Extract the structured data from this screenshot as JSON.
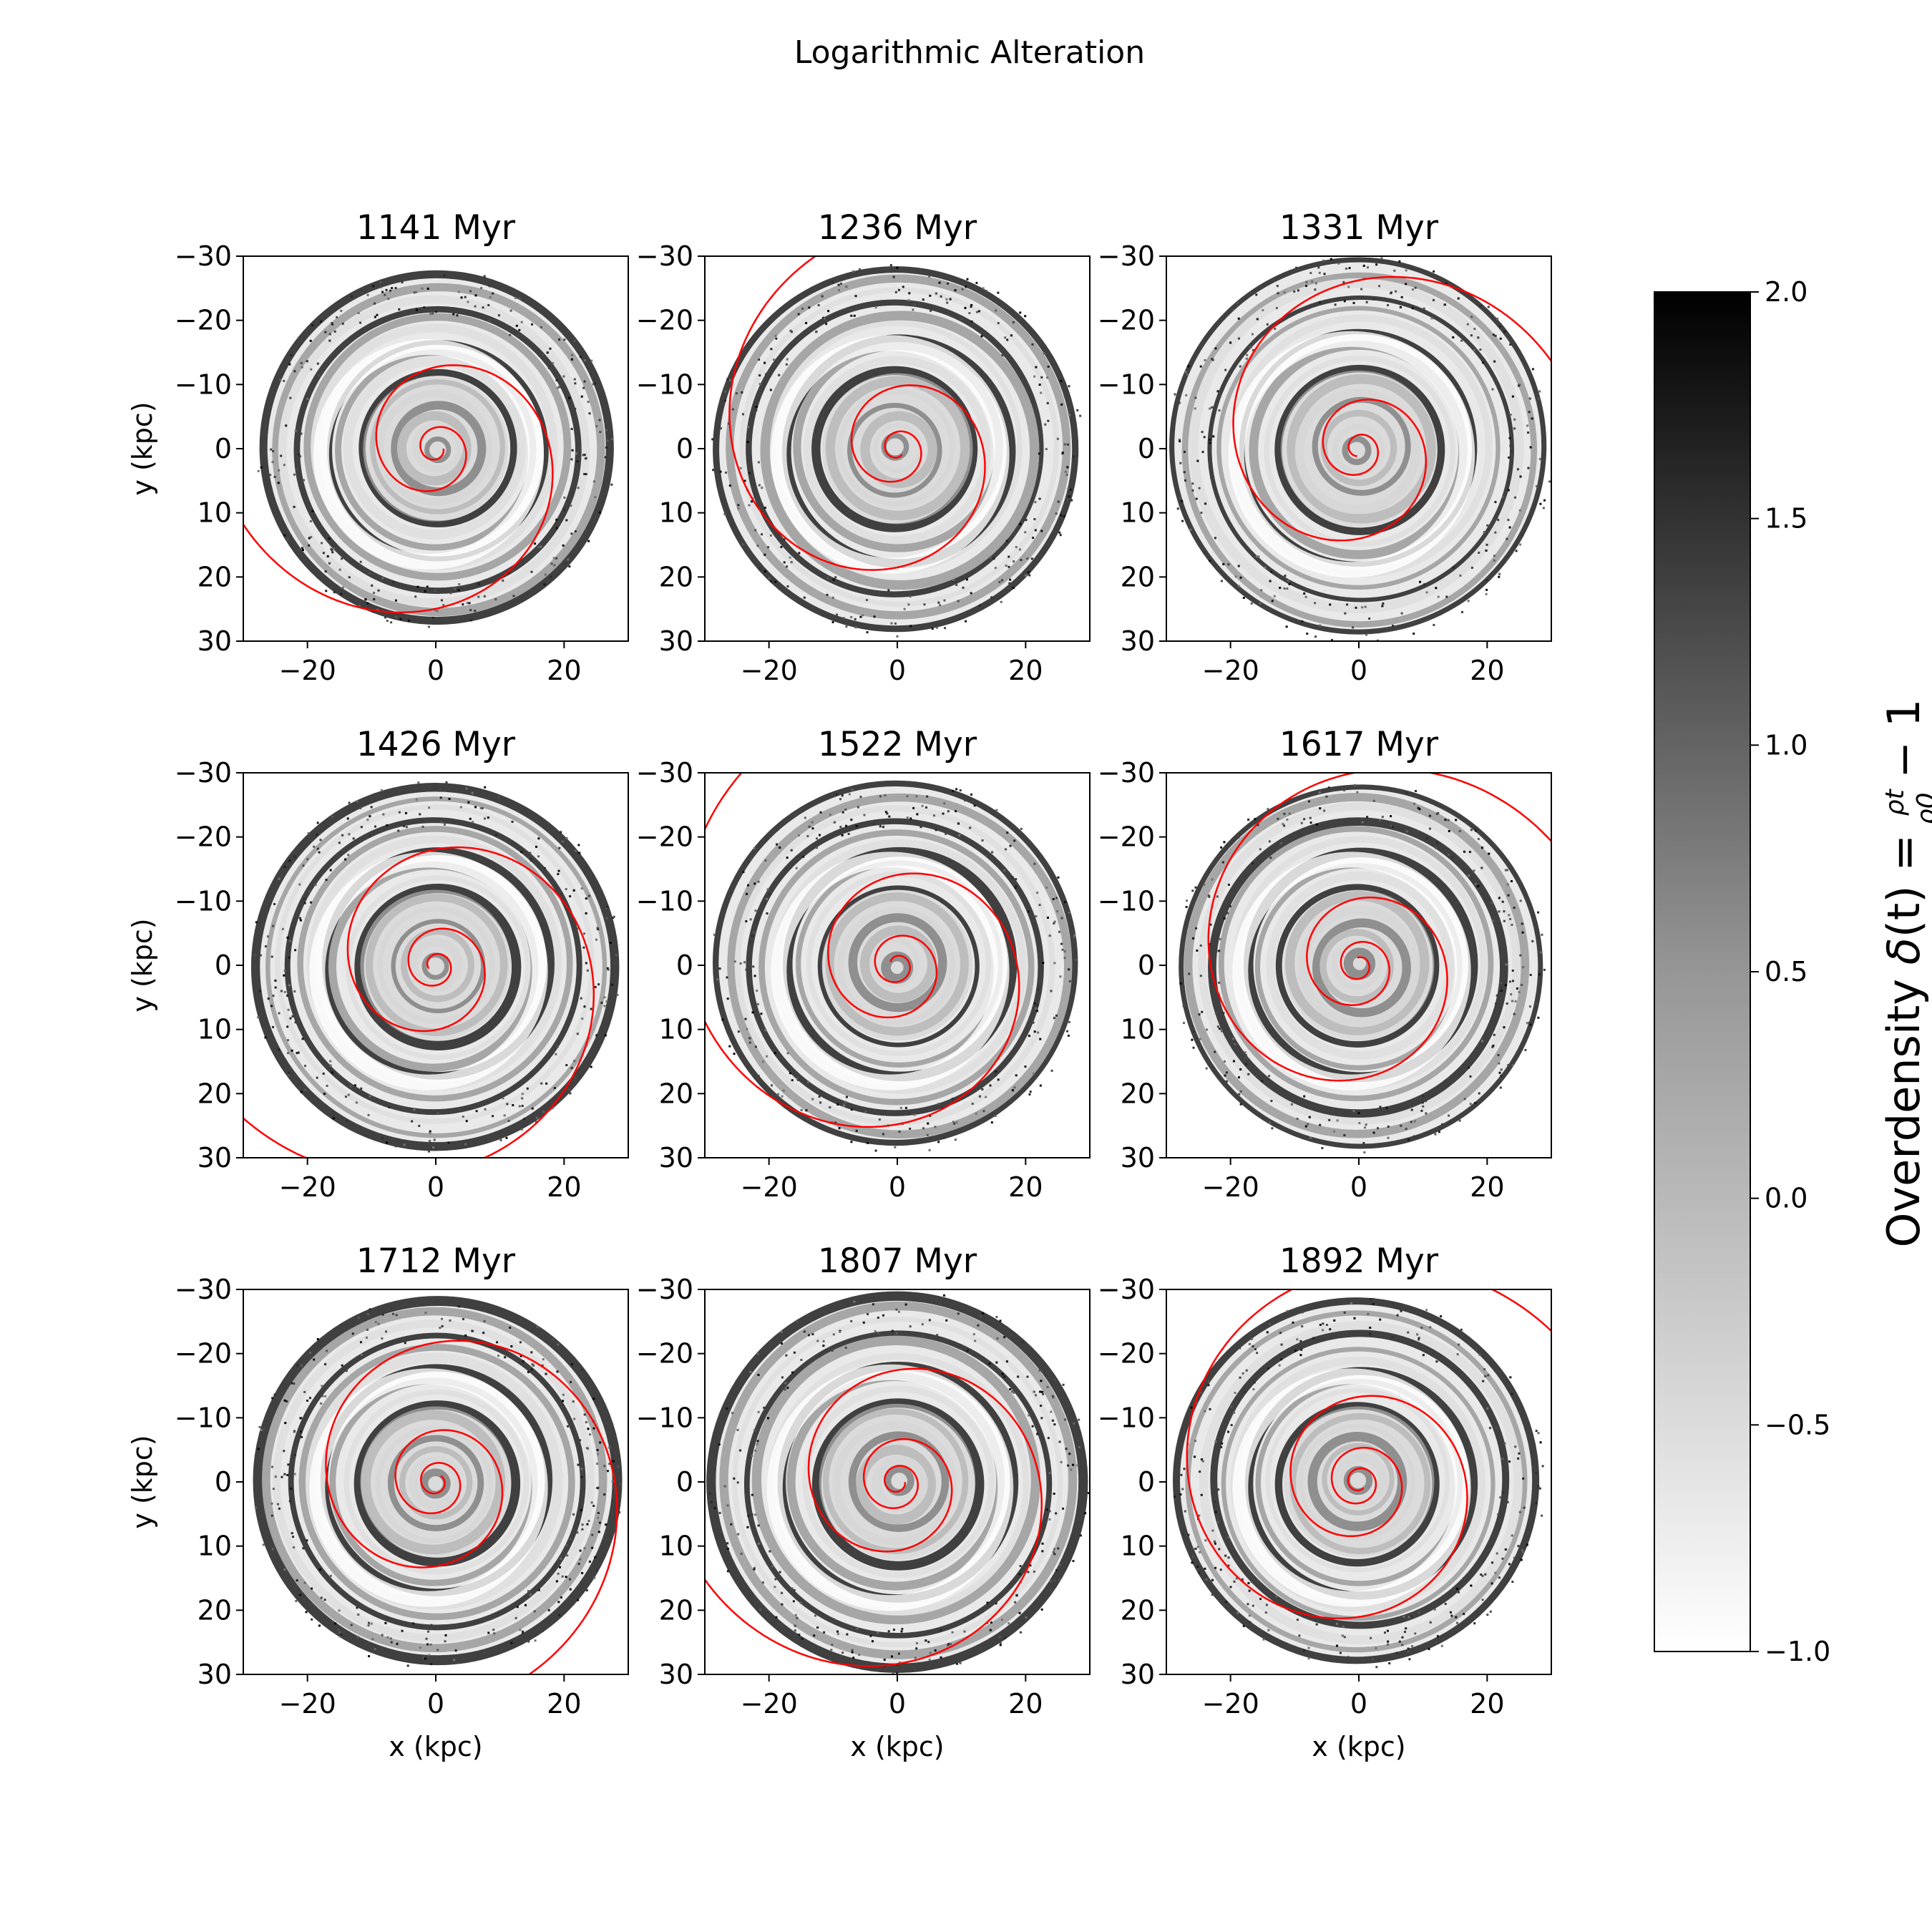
{
  "figure": {
    "suptitle": "Logarithmic Alteration",
    "xlabel": "x (kpc)",
    "ylabel": "y (kpc)",
    "x_ticks": [
      "−20",
      "0",
      "20"
    ],
    "y_ticks": [
      "−30",
      "−20",
      "−10",
      "0",
      "10",
      "20",
      "30"
    ]
  },
  "colorbar": {
    "label_text": "Overdensity ",
    "label_delta": "δ",
    "label_t": "(t) = ",
    "frac_num": "ρt",
    "frac_den": "ρ0",
    "label_tail": " − 1",
    "ticks": [
      "2.0",
      "1.5",
      "1.0",
      "0.5",
      "0.0",
      "−0.5",
      "−1.0"
    ],
    "range": [
      -1.0,
      2.0
    ],
    "cmap": "Greys"
  },
  "chart_data": {
    "type": "heatmap",
    "title": "Logarithmic Alteration",
    "xlabel": "x (kpc)",
    "ylabel": "y (kpc)",
    "xlim": [
      -30,
      30
    ],
    "ylim": [
      -30,
      30
    ],
    "y_inverted": true,
    "x_tick_values": [
      -20,
      0,
      20
    ],
    "y_tick_values": [
      -30,
      -20,
      -10,
      0,
      10,
      20,
      30
    ],
    "overlay_color": "#ff0000",
    "colorbar_range": [
      -1.0,
      2.0
    ],
    "panels": [
      {
        "title": "1141 Myr",
        "time_myr": 1141,
        "center": [
          0,
          0
        ],
        "disk_radius_kpc": 27,
        "spiral_turns": 2.6
      },
      {
        "title": "1236 Myr",
        "time_myr": 1236,
        "center": [
          0,
          0
        ],
        "disk_radius_kpc": 28,
        "spiral_turns": 2.7
      },
      {
        "title": "1331 Myr",
        "time_myr": 1331,
        "center": [
          0,
          0
        ],
        "disk_radius_kpc": 29,
        "spiral_turns": 2.8
      },
      {
        "title": "1426 Myr",
        "time_myr": 1426,
        "center": [
          0,
          0
        ],
        "disk_radius_kpc": 28,
        "spiral_turns": 3.0
      },
      {
        "title": "1522 Myr",
        "time_myr": 1522,
        "center": [
          0,
          0
        ],
        "disk_radius_kpc": 28,
        "spiral_turns": 3.1
      },
      {
        "title": "1617 Myr",
        "time_myr": 1617,
        "center": [
          0,
          0
        ],
        "disk_radius_kpc": 28,
        "spiral_turns": 3.3
      },
      {
        "title": "1712 Myr",
        "time_myr": 1712,
        "center": [
          0,
          0
        ],
        "disk_radius_kpc": 28,
        "spiral_turns": 3.5
      },
      {
        "title": "1807 Myr",
        "time_myr": 1807,
        "center": [
          0,
          0
        ],
        "disk_radius_kpc": 29,
        "spiral_turns": 3.6
      },
      {
        "title": "1892 Myr",
        "time_myr": 1892,
        "center": [
          0,
          0
        ],
        "disk_radius_kpc": 28,
        "spiral_turns": 3.8
      }
    ]
  }
}
